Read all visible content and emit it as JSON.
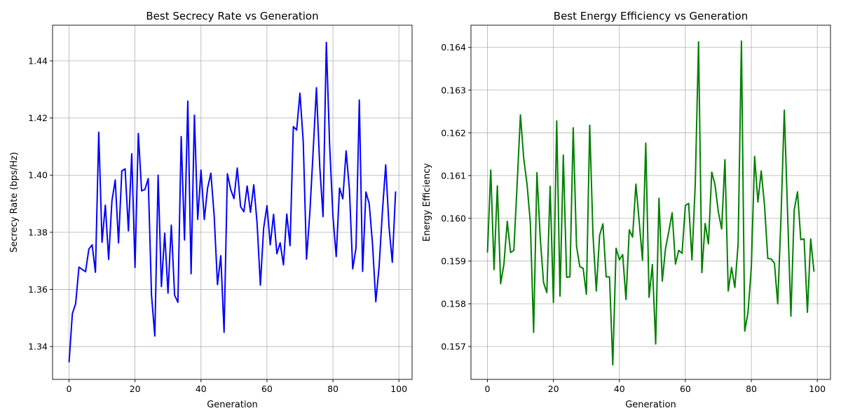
{
  "chart_data": [
    {
      "type": "line",
      "title": "Best Secrecy Rate vs Generation",
      "xlabel": "Generation",
      "ylabel": "Secrecy Rate (bps/Hz)",
      "xlim": [
        -5,
        104
      ],
      "ylim": [
        1.3285,
        1.4525
      ],
      "xticks": [
        0,
        20,
        40,
        60,
        80,
        100
      ],
      "yticks": [
        1.34,
        1.36,
        1.38,
        1.4,
        1.42,
        1.44
      ],
      "ytick_labels": [
        "1.34",
        "1.36",
        "1.38",
        "1.40",
        "1.42",
        "1.44"
      ],
      "grid": true,
      "series": [
        {
          "color": "#0000ff",
          "x": [
            0,
            1,
            2,
            3,
            4,
            5,
            6,
            7,
            8,
            9,
            10,
            11,
            12,
            13,
            14,
            15,
            16,
            17,
            18,
            19,
            20,
            21,
            22,
            23,
            24,
            25,
            26,
            27,
            28,
            29,
            30,
            31,
            32,
            33,
            34,
            35,
            36,
            37,
            38,
            39,
            40,
            41,
            42,
            43,
            44,
            45,
            46,
            47,
            48,
            49,
            50,
            51,
            52,
            53,
            54,
            55,
            56,
            57,
            58,
            59,
            60,
            61,
            62,
            63,
            64,
            65,
            66,
            67,
            68,
            69,
            70,
            71,
            72,
            73,
            74,
            75,
            76,
            77,
            78,
            79,
            80,
            81,
            82,
            83,
            84,
            85,
            86,
            87,
            88,
            89,
            90,
            91,
            92,
            93,
            94,
            95,
            96,
            97,
            98,
            99
          ],
          "values": [
            1.3345,
            1.3515,
            1.355,
            1.3678,
            1.367,
            1.3662,
            1.3741,
            1.3756,
            1.366,
            1.415,
            1.3765,
            1.3895,
            1.3705,
            1.391,
            1.3983,
            1.3763,
            1.4015,
            1.4022,
            1.3805,
            1.4075,
            1.3677,
            1.4146,
            1.3945,
            1.395,
            1.3988,
            1.358,
            1.3437,
            1.4,
            1.361,
            1.3797,
            1.3587,
            1.3825,
            1.358,
            1.3555,
            1.4135,
            1.3773,
            1.4259,
            1.3655,
            1.421,
            1.3845,
            1.4018,
            1.3845,
            1.3955,
            1.4007,
            1.3857,
            1.3617,
            1.3718,
            1.345,
            1.4005,
            1.395,
            1.3918,
            1.4025,
            1.389,
            1.3872,
            1.3962,
            1.387,
            1.3966,
            1.3833,
            1.3615,
            1.3815,
            1.3893,
            1.3756,
            1.3863,
            1.3725,
            1.3763,
            1.3686,
            1.3864,
            1.3753,
            1.417,
            1.4158,
            1.4287,
            1.4117,
            1.3706,
            1.3868,
            1.4083,
            1.4306,
            1.4032,
            1.3855,
            1.4465,
            1.4105,
            1.3857,
            1.3715,
            1.3955,
            1.3917,
            1.4085,
            1.395,
            1.3672,
            1.3745,
            1.4263,
            1.3663,
            1.3941,
            1.39,
            1.376,
            1.3557,
            1.368,
            1.3872,
            1.4036,
            1.382,
            1.3695,
            1.3943
          ]
        }
      ]
    },
    {
      "type": "line",
      "title": "Best Energy Efficiency vs Generation",
      "xlabel": "Generation",
      "ylabel": "Energy Efficiency",
      "xlim": [
        -5,
        104
      ],
      "ylim": [
        0.15623,
        0.16452
      ],
      "xticks": [
        0,
        20,
        40,
        60,
        80,
        100
      ],
      "yticks": [
        0.157,
        0.158,
        0.159,
        0.16,
        0.161,
        0.162,
        0.163,
        0.164
      ],
      "ytick_labels": [
        "0.157",
        "0.158",
        "0.159",
        "0.160",
        "0.161",
        "0.162",
        "0.163",
        "0.164"
      ],
      "grid": true,
      "series": [
        {
          "color": "#008000",
          "x": [
            0,
            1,
            2,
            3,
            4,
            5,
            6,
            7,
            8,
            9,
            10,
            11,
            12,
            13,
            14,
            15,
            16,
            17,
            18,
            19,
            20,
            21,
            22,
            23,
            24,
            25,
            26,
            27,
            28,
            29,
            30,
            31,
            32,
            33,
            34,
            35,
            36,
            37,
            38,
            39,
            40,
            41,
            42,
            43,
            44,
            45,
            46,
            47,
            48,
            49,
            50,
            51,
            52,
            53,
            54,
            55,
            56,
            57,
            58,
            59,
            60,
            61,
            62,
            63,
            64,
            65,
            66,
            67,
            68,
            69,
            70,
            71,
            72,
            73,
            74,
            75,
            76,
            77,
            78,
            79,
            80,
            81,
            82,
            83,
            84,
            85,
            86,
            87,
            88,
            89,
            90,
            91,
            92,
            93,
            94,
            95,
            96,
            97,
            98,
            99
          ],
          "values": [
            0.1592,
            0.16113,
            0.1588,
            0.16076,
            0.15847,
            0.15893,
            0.15993,
            0.1592,
            0.15925,
            0.1608,
            0.16242,
            0.1614,
            0.1608,
            0.1599,
            0.15733,
            0.16107,
            0.15955,
            0.1585,
            0.15826,
            0.16075,
            0.15803,
            0.16228,
            0.15818,
            0.16148,
            0.15862,
            0.15863,
            0.16212,
            0.15935,
            0.15887,
            0.15883,
            0.15822,
            0.16218,
            0.1596,
            0.1583,
            0.1596,
            0.15987,
            0.15863,
            0.15863,
            0.15657,
            0.1593,
            0.15903,
            0.15915,
            0.1581,
            0.15973,
            0.15956,
            0.1608,
            0.15993,
            0.15902,
            0.16176,
            0.15815,
            0.15892,
            0.15706,
            0.16047,
            0.15853,
            0.1593,
            0.1597,
            0.16013,
            0.15893,
            0.15925,
            0.15918,
            0.1603,
            0.16035,
            0.15903,
            0.1608,
            0.16413,
            0.15873,
            0.15988,
            0.1594,
            0.16108,
            0.16078,
            0.16015,
            0.15975,
            0.16137,
            0.1583,
            0.15885,
            0.15838,
            0.1594,
            0.16415,
            0.15736,
            0.1578,
            0.15885,
            0.16145,
            0.16038,
            0.16111,
            0.1603,
            0.15906,
            0.15905,
            0.15895,
            0.158,
            0.16002,
            0.16253,
            0.1601,
            0.15771,
            0.1602,
            0.16062,
            0.1595,
            0.15952,
            0.1578,
            0.15952,
            0.15875
          ]
        }
      ]
    }
  ]
}
